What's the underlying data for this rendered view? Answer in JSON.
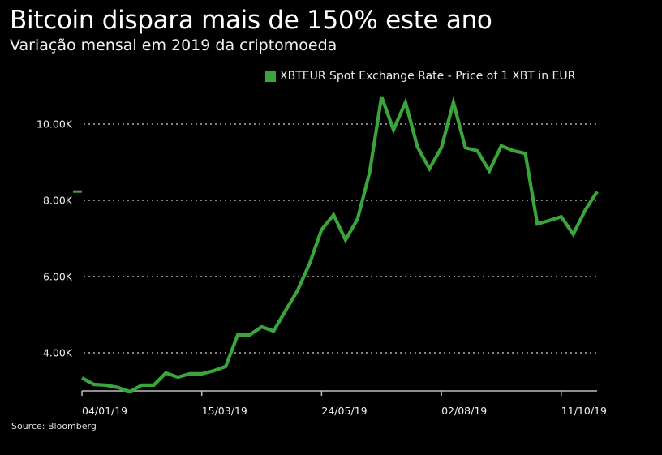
{
  "header": {
    "title": "Bitcoin dispara mais de 150% este ano",
    "subtitle": "Variação mensal em 2019 da criptomoeda"
  },
  "footer": {
    "source": "Source: Bloomberg"
  },
  "colors": {
    "line": "#3aa53a",
    "background": "#000000",
    "grid": "#cfcfcf",
    "axis": "#bdbdbd",
    "last_value_marker": "#3aa53a"
  },
  "chart_data": {
    "type": "line",
    "title": "Bitcoin dispara mais de 150% este ano",
    "subtitle": "Variação mensal em 2019 da criptomoeda",
    "xlabel": "",
    "ylabel": "",
    "legend": {
      "position": "top",
      "entries": [
        "XBTEUR Spot Exchange Rate - Price of 1 XBT in EUR"
      ]
    },
    "grid": true,
    "ylim": [
      3000,
      11000
    ],
    "yticks": [
      4000,
      6000,
      8000,
      10000
    ],
    "ytick_labels": [
      "4.00K",
      "6.00K",
      "8.00K",
      "10.00K"
    ],
    "xtick_labels": [
      "04/01/19",
      "15/03/19",
      "24/05/19",
      "02/08/19",
      "11/10/19"
    ],
    "xtick_week_index": [
      0,
      10,
      20,
      30,
      40
    ],
    "x_unit": "weeks since 04/01/19",
    "last_value_marker": 8230,
    "series": [
      {
        "name": "XBTEUR Spot Exchange Rate - Price of 1 XBT in EUR",
        "values": [
          3340,
          3170,
          3150,
          3090,
          2980,
          3150,
          3150,
          3470,
          3360,
          3450,
          3450,
          3530,
          3640,
          4470,
          4470,
          4680,
          4570,
          5110,
          5640,
          6340,
          7230,
          7620,
          6960,
          7510,
          8720,
          10720,
          9850,
          10570,
          9400,
          8830,
          9380,
          10570,
          9380,
          9300,
          8770,
          9430,
          9300,
          9230,
          7380,
          7470,
          7570,
          7110,
          7740,
          8230
        ]
      }
    ]
  }
}
